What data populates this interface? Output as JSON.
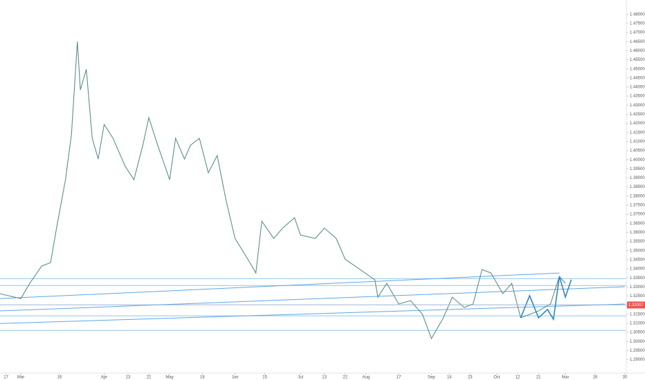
{
  "chart_data": {
    "type": "line",
    "ylim": [
      1.2826,
      1.4879
    ],
    "yticks": [
      {
        "value": 1.29,
        "label": "1.29000"
      },
      {
        "value": 1.295,
        "label": "1.29500"
      },
      {
        "value": 1.3,
        "label": "1.30000"
      },
      {
        "value": 1.305,
        "label": "1.30500"
      },
      {
        "value": 1.31,
        "label": "1.31000"
      },
      {
        "value": 1.315,
        "label": "1.31500"
      },
      {
        "value": 1.32,
        "label": "1.32000"
      },
      {
        "value": 1.325,
        "label": "1.32500"
      },
      {
        "value": 1.33,
        "label": "1.33000"
      },
      {
        "value": 1.335,
        "label": "1.33500"
      },
      {
        "value": 1.34,
        "label": "1.34000"
      },
      {
        "value": 1.345,
        "label": "1.34500"
      },
      {
        "value": 1.35,
        "label": "1.35000"
      },
      {
        "value": 1.355,
        "label": "1.35500"
      },
      {
        "value": 1.36,
        "label": "1.36000"
      },
      {
        "value": 1.365,
        "label": "1.36500"
      },
      {
        "value": 1.37,
        "label": "1.37000"
      },
      {
        "value": 1.375,
        "label": "1.37500"
      },
      {
        "value": 1.38,
        "label": "1.38000"
      },
      {
        "value": 1.385,
        "label": "1.38500"
      },
      {
        "value": 1.39,
        "label": "1.39000"
      },
      {
        "value": 1.395,
        "label": "1.39500"
      },
      {
        "value": 1.4,
        "label": "1.40000"
      },
      {
        "value": 1.405,
        "label": "1.40500"
      },
      {
        "value": 1.41,
        "label": "1.41000"
      },
      {
        "value": 1.415,
        "label": "1.41500"
      },
      {
        "value": 1.42,
        "label": "1.42000"
      },
      {
        "value": 1.425,
        "label": "1.42500"
      },
      {
        "value": 1.43,
        "label": "1.43000"
      },
      {
        "value": 1.435,
        "label": "1.43500"
      },
      {
        "value": 1.44,
        "label": "1.44000"
      },
      {
        "value": 1.445,
        "label": "1.44500"
      },
      {
        "value": 1.45,
        "label": "1.45000"
      },
      {
        "value": 1.455,
        "label": "1.45500"
      },
      {
        "value": 1.46,
        "label": "1.46000"
      },
      {
        "value": 1.465,
        "label": "1.46500"
      },
      {
        "value": 1.47,
        "label": "1.47000"
      },
      {
        "value": 1.475,
        "label": "1.47500"
      },
      {
        "value": 1.48,
        "label": "1.48000"
      }
    ],
    "xlim": [
      0,
      210.5
    ],
    "xticks": [
      {
        "value": 2,
        "label": "17"
      },
      {
        "value": 7,
        "label": "Mar"
      },
      {
        "value": 20,
        "label": "16"
      },
      {
        "value": 35,
        "label": "Apr"
      },
      {
        "value": 43,
        "label": "13"
      },
      {
        "value": 50,
        "label": "22"
      },
      {
        "value": 57,
        "label": "May"
      },
      {
        "value": 68,
        "label": "18"
      },
      {
        "value": 79,
        "label": "Jun"
      },
      {
        "value": 89,
        "label": "15"
      },
      {
        "value": 101,
        "label": "Jul"
      },
      {
        "value": 109,
        "label": "13"
      },
      {
        "value": 116,
        "label": "22"
      },
      {
        "value": 123,
        "label": "Aug"
      },
      {
        "value": 134,
        "label": "17"
      },
      {
        "value": 145,
        "label": "Sep"
      },
      {
        "value": 151,
        "label": "14"
      },
      {
        "value": 158,
        "label": "23"
      },
      {
        "value": 167,
        "label": "Oct"
      },
      {
        "value": 174,
        "label": "12"
      },
      {
        "value": 181,
        "label": "21"
      },
      {
        "value": 190,
        "label": "Nov"
      },
      {
        "value": 200,
        "label": "16"
      },
      {
        "value": 210,
        "label": "30"
      }
    ],
    "series": [
      {
        "color": "#5a8f88",
        "x": [
          0,
          7,
          10,
          14,
          17,
          19,
          22,
          24,
          26,
          27,
          29,
          31,
          33,
          35,
          38,
          42,
          45,
          48,
          50,
          53,
          57,
          59,
          62,
          64,
          67,
          70,
          73,
          76,
          79,
          84,
          86,
          88,
          92,
          95,
          99,
          101,
          106,
          109,
          113,
          116,
          121,
          126,
          127,
          130,
          134,
          138,
          142,
          145,
          149,
          152,
          156,
          159,
          162,
          165,
          169,
          172,
          175,
          178,
          181,
          185,
          188,
          190
        ],
        "values": [
          1.3263,
          1.3236,
          1.332,
          1.3415,
          1.3434,
          1.3624,
          1.389,
          1.4137,
          1.465,
          1.4384,
          1.4498,
          1.4118,
          1.4004,
          1.4194,
          1.4118,
          1.3966,
          1.389,
          1.408,
          1.4232,
          1.408,
          1.389,
          1.4118,
          1.4004,
          1.408,
          1.4118,
          1.3928,
          1.4023,
          1.3776,
          1.3567,
          1.3434,
          1.3377,
          1.3662,
          1.3567,
          1.3624,
          1.3681,
          1.3586,
          1.3567,
          1.3624,
          1.3567,
          1.3453,
          1.3396,
          1.3339,
          1.3244,
          1.332,
          1.3206,
          1.3225,
          1.3149,
          1.3016,
          1.313,
          1.3244,
          1.3187,
          1.3206,
          1.3396,
          1.3377,
          1.3263,
          1.332,
          1.313,
          1.3149,
          1.3168,
          1.3206,
          1.3358,
          1.332
        ]
      },
      {
        "color": "#2e86c8",
        "x": [
          175,
          178,
          181,
          184,
          186,
          188,
          190,
          192
        ],
        "values": [
          1.313,
          1.3252,
          1.313,
          1.3176,
          1.3122,
          1.3358,
          1.3244,
          1.334
        ]
      }
    ],
    "levels": [
      1.3346,
      1.3308,
      1.3202,
      1.3141,
      1.3061
    ],
    "trend_lines": [
      {
        "x": [
          0,
          188
        ],
        "values": [
          1.3236,
          1.3377
        ]
      },
      {
        "x": [
          0,
          210
        ],
        "values": [
          1.3168,
          1.3301
        ]
      },
      {
        "x": [
          0,
          210
        ],
        "values": [
          1.3099,
          1.3206
        ]
      }
    ],
    "last_price": {
      "value": 1.32007,
      "label": "1.32007"
    }
  }
}
